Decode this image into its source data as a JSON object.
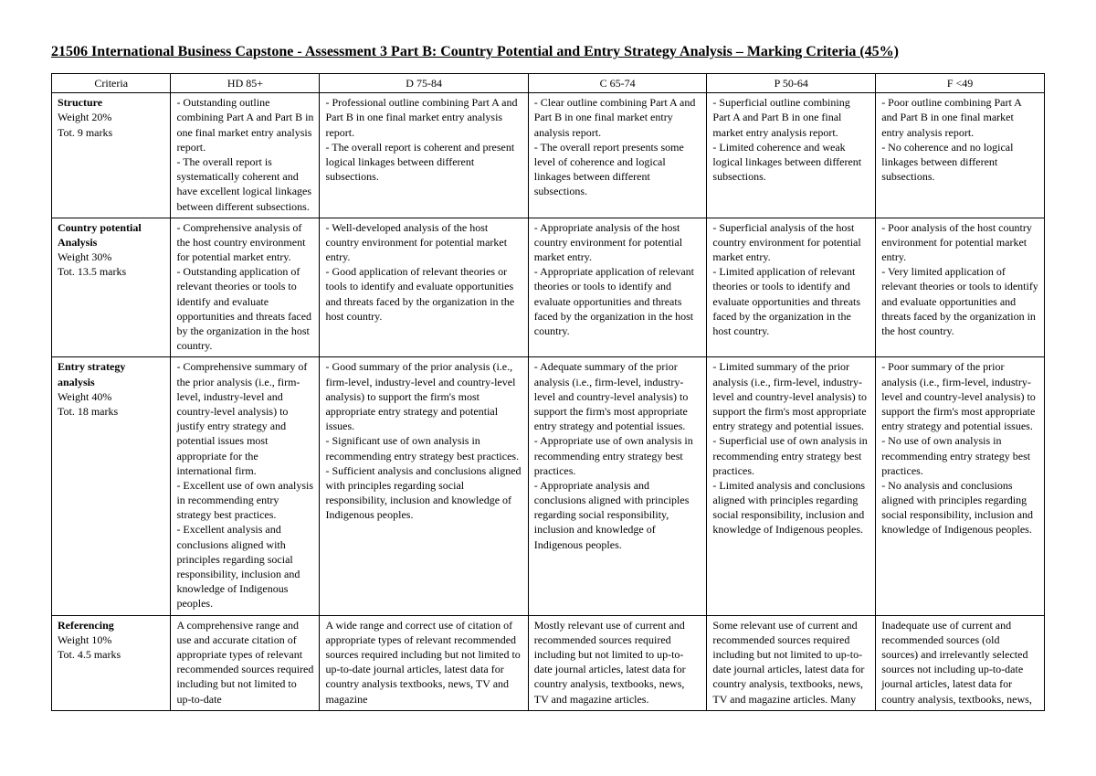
{
  "title": "21506 International Business Capstone - Assessment 3 Part B: Country Potential and Entry Strategy Analysis – Marking Criteria (45%)",
  "headers": {
    "criteria": "Criteria",
    "hd": "HD 85+",
    "d": "D 75-84",
    "c": "C 65-74",
    "p": "P 50-64",
    "f": "F <49"
  },
  "rows": [
    {
      "criterion_name": "Structure",
      "criterion_meta": "Weight 20%\nTot. 9 marks",
      "hd": "- Outstanding outline combining Part A and Part B in one final market entry analysis report.\n- The overall report is systematically coherent and have excellent logical linkages between different subsections.",
      "d": "- Professional outline combining Part A and Part B in one final market entry analysis report.\n- The overall report is coherent and present logical linkages between different subsections.",
      "c": "- Clear outline combining Part A and Part B in one final market entry analysis report.\n- The overall report presents some level of coherence and logical linkages between different subsections.",
      "p": "- Superficial outline combining Part A and Part B in one final market entry analysis report.\n- Limited coherence and weak logical linkages between different subsections.",
      "f": "- Poor outline combining Part A and Part B in one final market entry analysis report.\n- No coherence and no logical linkages between different subsections."
    },
    {
      "criterion_name": "Country potential Analysis",
      "criterion_meta": "Weight 30%\nTot. 13.5 marks",
      "hd": "- Comprehensive analysis of the host country environment for potential market entry.\n- Outstanding application of relevant theories or tools to identify and evaluate opportunities and threats faced by the organization in the host country.",
      "d": "- Well-developed analysis of the host country environment for potential market entry.\n- Good application of relevant theories or tools to identify and evaluate opportunities and threats faced by the organization in the host country.",
      "c": "- Appropriate analysis of the host country environment for potential market entry.\n- Appropriate application of relevant theories or tools to identify and evaluate opportunities and threats faced by the organization in the host country.",
      "p": "- Superficial analysis of the host country environment for potential market entry.\n- Limited application of relevant theories or tools to identify and evaluate opportunities and threats faced by the organization in the host country.",
      "f": "- Poor analysis of the host country environment for potential market entry.\n- Very limited application of relevant theories or tools to identify and evaluate opportunities and threats faced by the organization in the host country."
    },
    {
      "criterion_name": "Entry strategy analysis",
      "criterion_meta": "Weight 40%\nTot. 18 marks",
      "hd": "- Comprehensive summary of the prior analysis (i.e., firm-level, industry-level and country-level analysis) to justify entry strategy and potential issues most appropriate for the international firm.\n- Excellent use of own analysis in recommending entry strategy best practices.\n- Excellent analysis and conclusions aligned with principles regarding social responsibility, inclusion and knowledge of Indigenous peoples.",
      "d": "- Good summary of the prior analysis (i.e., firm-level, industry-level and country-level analysis) to support the firm's most appropriate entry strategy and potential issues.\n- Significant use of own analysis in recommending entry strategy best practices.\n- Sufficient analysis and conclusions aligned with principles regarding social responsibility, inclusion and knowledge of Indigenous peoples.",
      "c": "- Adequate summary of the prior analysis (i.e., firm-level, industry-level and country-level analysis) to support the firm's most appropriate entry strategy and potential issues.\n- Appropriate use of own analysis in recommending entry strategy best practices.\n- Appropriate analysis and conclusions aligned with principles regarding social responsibility, inclusion and knowledge of Indigenous peoples.",
      "p": "- Limited summary of the prior analysis (i.e., firm-level, industry-level and country-level analysis) to support the firm's most appropriate entry strategy and potential issues.\n- Superficial use of own analysis in recommending entry strategy best practices.\n- Limited analysis and conclusions aligned with principles regarding social responsibility, inclusion and knowledge of Indigenous peoples.",
      "f": "- Poor summary of the prior analysis (i.e., firm-level, industry-level and country-level analysis) to support the firm's most appropriate entry strategy and potential issues.\n- No use of own analysis in recommending entry strategy best practices.\n- No analysis and conclusions aligned with principles regarding social responsibility, inclusion and knowledge of Indigenous peoples."
    },
    {
      "criterion_name": "Referencing",
      "criterion_meta": "Weight 10%\nTot. 4.5 marks",
      "hd": "A comprehensive range and use and accurate citation of appropriate types of relevant recommended sources required including but not limited to up-to-date",
      "d": "A wide range and correct use of citation of appropriate types of relevant recommended sources required including but not limited to up-to-date journal articles, latest data for country analysis textbooks, news, TV and magazine",
      "c": "Mostly relevant use of current and recommended sources required including but not limited to up-to-date journal articles, latest data for country analysis, textbooks, news, TV and magazine articles.",
      "p": "Some relevant use of current and recommended sources required including but not limited to up-to-date journal articles, latest data for country analysis, textbooks, news, TV and magazine articles. Many",
      "f": "Inadequate use of current and recommended sources (old sources) and irrelevantly selected sources not including up-to-date journal articles, latest data for country analysis, textbooks, news,"
    }
  ]
}
